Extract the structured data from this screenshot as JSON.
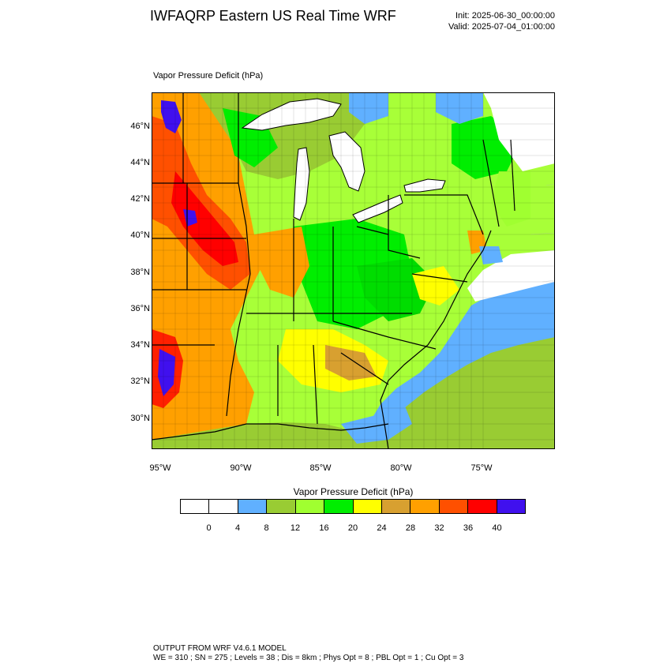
{
  "header": {
    "title": "IWFAQRP Eastern US Real Time WRF",
    "init": "Init: 2025-06-30_00:00:00",
    "valid": "Valid: 2025-07-04_01:00:00"
  },
  "map": {
    "field_title": "Vapor Pressure Deficit   (hPa)",
    "lat_labels": [
      "46°N",
      "44°N",
      "42°N",
      "40°N",
      "38°N",
      "36°N",
      "34°N",
      "32°N",
      "30°N"
    ],
    "lon_labels": [
      "95°W",
      "90°W",
      "85°W",
      "80°W",
      "75°W"
    ],
    "colors": {
      "lake": "#ffffff",
      "land_low": "#60b0ff",
      "mid_green": "#99cc33",
      "light_green": "#a0ff30",
      "green": "#00ee00",
      "yellow": "#ffff00",
      "tan": "#d8a030",
      "orange": "#ffa000",
      "red_orange": "#ff5000",
      "red": "#ff0000",
      "purple": "#4010ee"
    }
  },
  "colorbar": {
    "title": "Vapor Pressure Deficit  (hPa)",
    "colors": [
      "#ffffff",
      "#ffffff",
      "#60b0ff",
      "#99cc33",
      "#a0ff30",
      "#00ee00",
      "#ffff00",
      "#d8a030",
      "#ffa000",
      "#ff5000",
      "#ff0000",
      "#4010ee"
    ],
    "labels": [
      "0",
      "4",
      "8",
      "12",
      "16",
      "20",
      "24",
      "28",
      "32",
      "36",
      "40"
    ]
  },
  "footer": {
    "line1": "OUTPUT FROM WRF V4.6.1 MODEL",
    "line2": "WE = 310 ; SN = 275 ; Levels = 38 ; Dis = 8km ; Phys Opt = 8 ; PBL Opt = 1 ; Cu Opt = 3"
  }
}
